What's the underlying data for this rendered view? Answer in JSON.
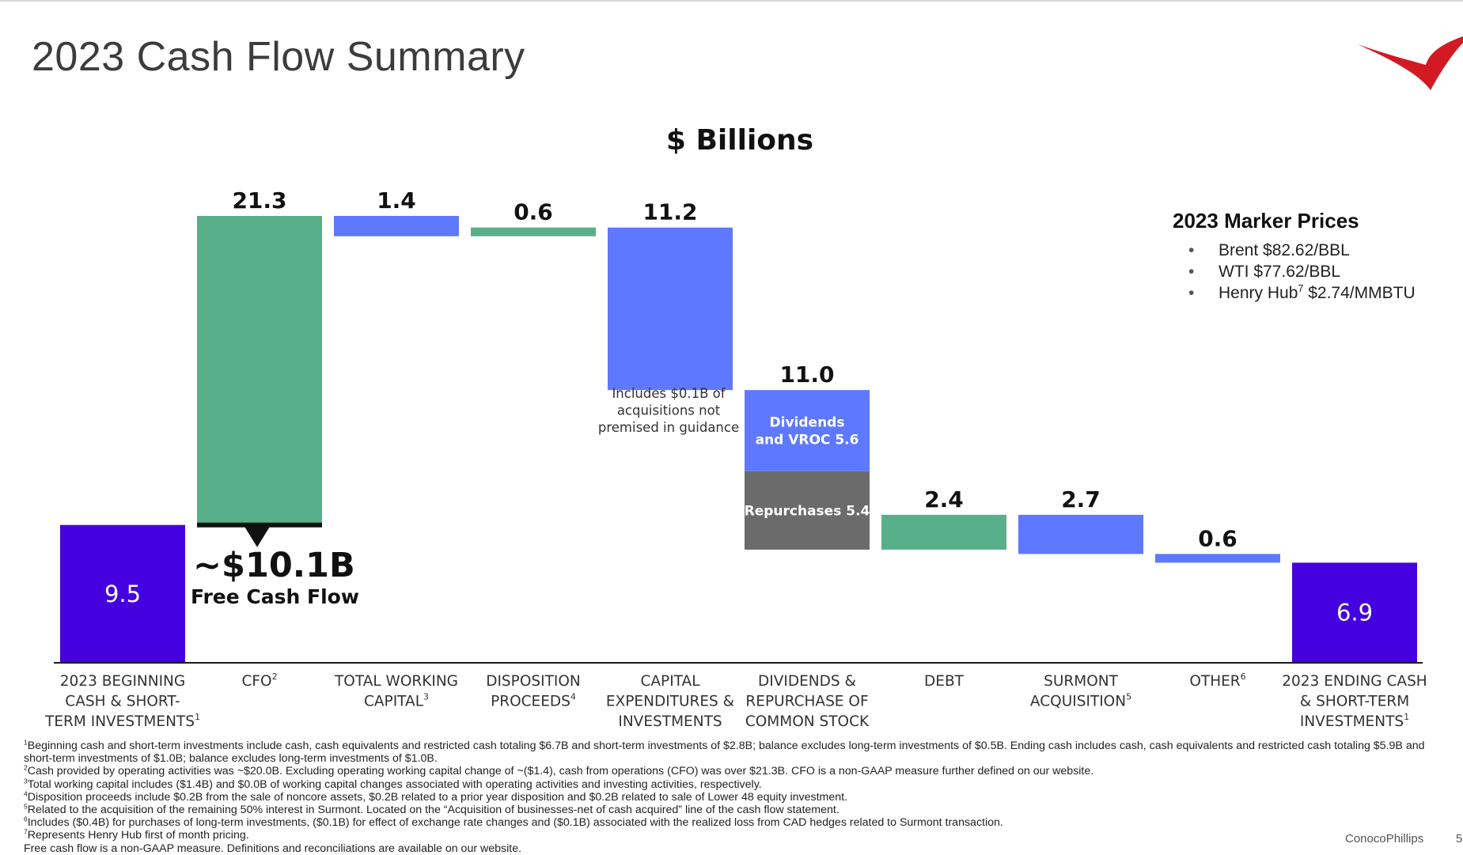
{
  "slide": {
    "title": "2023 Cash Flow Summary",
    "brand": "ConocoPhillips",
    "page_number": "5"
  },
  "colors": {
    "green": "#58b08a",
    "blue": "#5e79ff",
    "purple": "#4500e0",
    "gray": "#6b6b6b",
    "logo_red": "#d11a24",
    "axis": "#1a1a1a"
  },
  "chart_data": {
    "type": "bar",
    "subtype": "waterfall",
    "title": "$ Billions",
    "ylim": [
      0,
      32
    ],
    "bars": [
      {
        "label": [
          "2023 BEGINNING",
          "CASH & SHORT-",
          "TERM INVESTMENTS"
        ],
        "sup": "1",
        "base": 0,
        "top": 9.5,
        "value": "9.5",
        "color": "purple",
        "label_inside": true
      },
      {
        "label": [
          "CFO"
        ],
        "sup": "2",
        "base": 9.5,
        "top": 30.8,
        "value": "21.3",
        "color": "green"
      },
      {
        "label": [
          "TOTAL WORKING",
          "CAPITAL"
        ],
        "sup": "3",
        "base": 29.4,
        "top": 30.8,
        "value": "1.4",
        "color": "blue"
      },
      {
        "label": [
          "DISPOSITION",
          "PROCEEDS"
        ],
        "sup": "4",
        "base": 29.4,
        "top": 30.0,
        "value": "0.6",
        "color": "green"
      },
      {
        "label": [
          "CAPITAL",
          "EXPENDITURES &",
          "INVESTMENTS"
        ],
        "sup": "",
        "base": 18.8,
        "top": 30.0,
        "value": "11.2",
        "color": "blue"
      },
      {
        "label": [
          "DIVIDENDS &",
          "REPURCHASE OF",
          "COMMON STOCK"
        ],
        "sup": "",
        "base": 7.8,
        "top": 18.8,
        "value": "11.0",
        "color": "stacked"
      },
      {
        "label": [
          "DEBT"
        ],
        "sup": "",
        "base": 7.8,
        "top": 10.2,
        "value": "2.4",
        "color": "green"
      },
      {
        "label": [
          "SURMONT",
          "ACQUISITION"
        ],
        "sup": "5",
        "base": 7.5,
        "top": 10.2,
        "value": "2.7",
        "color": "blue"
      },
      {
        "label": [
          "OTHER"
        ],
        "sup": "6",
        "base": 6.9,
        "top": 7.5,
        "value": "0.6",
        "color": "blue"
      },
      {
        "label": [
          "2023 ENDING CASH",
          "& SHORT-TERM",
          "INVESTMENTS"
        ],
        "sup": "1",
        "base": 0,
        "top": 6.9,
        "value": "6.9",
        "color": "purple",
        "label_inside": true
      }
    ],
    "stacked_components": [
      {
        "name": "Dividends and VROC",
        "label": [
          "Dividends",
          "and VROC 5.6"
        ],
        "value": 5.6,
        "color": "blue"
      },
      {
        "name": "Repurchases",
        "label": [
          "Repurchases 5.4"
        ],
        "value": 5.4,
        "color": "gray"
      }
    ],
    "annotations": {
      "capex_note": [
        "Includes $0.1B of",
        "acquisitions not",
        "premised in guidance"
      ],
      "fcf_value": "~$10.1B",
      "fcf_label": "Free Cash Flow"
    }
  },
  "marker_prices": {
    "title": "2023 Marker Prices",
    "brent": "Brent $82.62/BBL",
    "wti": "WTI $77.62/BBL",
    "henry_name": "Henry Hub",
    "henry_sup": "7",
    "henry_value": " $2.74/MMBTU"
  },
  "footnotes": {
    "f1_num": "1",
    "f1": "Beginning cash and short-term investments include cash, cash equivalents and restricted cash totaling $6.7B and short-term investments of $2.8B; balance excludes long-term investments of $0.5B. Ending cash includes cash, cash equivalents and restricted cash totaling $5.9B and short-term investments of $1.0B; balance excludes long-term investments of $1.0B.",
    "f2_num": "2",
    "f2": "Cash provided by operating activities was ~$20.0B. Excluding operating working capital change of ~($1.4), cash from operations (CFO) was over $21.3B. CFO is a non-GAAP measure further defined on our website.",
    "f3_num": "3",
    "f3": "Total working capital includes ($1.4B) and $0.0B of working capital changes associated with operating activities and investing activities, respectively.",
    "f4_num": "4",
    "f4": "Disposition proceeds include $0.2B from the sale of noncore assets, $0.2B related to a prior year disposition and $0.2B related to sale of Lower 48 equity investment.",
    "f5_num": "5",
    "f5": "Related to the acquisition of the remaining 50% interest in Surmont. Located on the “Acquisition of businesses-net of cash acquired” line of the cash flow statement.",
    "f6_num": "6",
    "f6": "Includes ($0.4B) for purchases of long-term investments, ($0.1B) for effect of exchange rate changes and ($0.1B) associated with the realized loss from CAD hedges related to Surmont transaction.",
    "f7_num": "7",
    "f7": "Represents Henry Hub first of month pricing.",
    "f8": "Free cash flow is a non-GAAP measure. Definitions and reconciliations are available on our website."
  }
}
